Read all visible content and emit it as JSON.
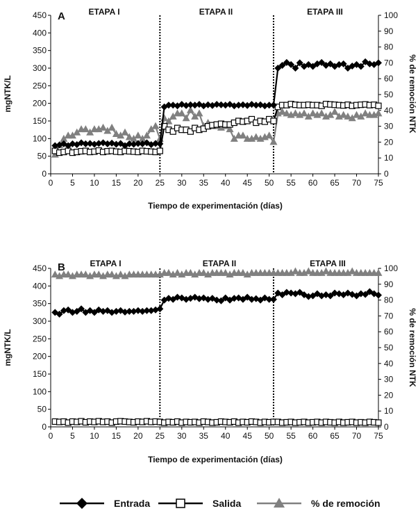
{
  "legend": {
    "entrada": "Entrada",
    "salida": "Salida",
    "remocion": "% de remoción"
  },
  "chart_data": [
    {
      "type": "line",
      "panel_label": "A",
      "stages": [
        "ETAPA I",
        "ETAPA II",
        "ETAPA III"
      ],
      "stage_boundaries": [
        25,
        51
      ],
      "xlabel": "Tiempo de experimentación (días)",
      "ylabel": "mgNTK/L",
      "y2label": "% de remoción NTK",
      "xlim": [
        0,
        75
      ],
      "ylim": [
        0,
        450
      ],
      "y2lim": [
        0,
        100
      ],
      "xticks": [
        "0",
        "5",
        "10",
        "15",
        "20",
        "25",
        "30",
        "35",
        "40",
        "45",
        "50",
        "55",
        "60",
        "65",
        "70",
        "75"
      ],
      "yticks": [
        "0",
        "50",
        "100",
        "150",
        "200",
        "250",
        "300",
        "350",
        "400",
        "450"
      ],
      "y2ticks": [
        "0",
        "10",
        "20",
        "30",
        "40",
        "50",
        "60",
        "70",
        "80",
        "90",
        "100"
      ],
      "series": [
        {
          "name": "Entrada",
          "axis": "left",
          "color": "#000000",
          "marker": "diamond",
          "x": [
            1,
            2,
            3,
            4,
            5,
            6,
            7,
            8,
            9,
            10,
            11,
            12,
            13,
            14,
            15,
            16,
            17,
            18,
            19,
            20,
            21,
            22,
            23,
            24,
            25,
            26,
            27,
            28,
            29,
            30,
            31,
            32,
            33,
            34,
            35,
            36,
            37,
            38,
            39,
            40,
            41,
            42,
            43,
            44,
            45,
            46,
            47,
            48,
            49,
            50,
            51,
            52,
            53,
            54,
            55,
            56,
            57,
            58,
            59,
            60,
            61,
            62,
            63,
            64,
            65,
            66,
            67,
            68,
            69,
            70,
            71,
            72,
            73,
            74,
            75
          ],
          "y": [
            80,
            82,
            85,
            80,
            85,
            83,
            88,
            85,
            86,
            84,
            86,
            88,
            85,
            87,
            84,
            86,
            80,
            85,
            84,
            86,
            85,
            88,
            83,
            86,
            85,
            190,
            195,
            195,
            193,
            197,
            194,
            196,
            195,
            197,
            193,
            196,
            194,
            197,
            196,
            195,
            197,
            193,
            195,
            196,
            194,
            197,
            195,
            196,
            193,
            195,
            195,
            300,
            308,
            316,
            310,
            300,
            315,
            305,
            310,
            305,
            312,
            316,
            308,
            312,
            305,
            310,
            312,
            300,
            306,
            310,
            305,
            318,
            312,
            310,
            315
          ]
        },
        {
          "name": "Salida",
          "axis": "left",
          "color": "#000000",
          "marker": "square-open",
          "x": [
            1,
            2,
            3,
            4,
            5,
            6,
            7,
            8,
            9,
            10,
            11,
            12,
            13,
            14,
            15,
            16,
            17,
            18,
            19,
            20,
            21,
            22,
            23,
            24,
            25,
            26,
            27,
            28,
            29,
            30,
            31,
            32,
            33,
            34,
            35,
            36,
            37,
            38,
            39,
            40,
            41,
            42,
            43,
            44,
            45,
            46,
            47,
            48,
            49,
            50,
            51,
            52,
            53,
            54,
            55,
            56,
            57,
            58,
            59,
            60,
            61,
            62,
            63,
            64,
            65,
            66,
            67,
            68,
            69,
            70,
            71,
            72,
            73,
            74,
            75
          ],
          "y": [
            65,
            60,
            62,
            65,
            60,
            62,
            64,
            65,
            62,
            63,
            66,
            62,
            64,
            65,
            63,
            62,
            65,
            64,
            63,
            62,
            65,
            64,
            63,
            62,
            65,
            135,
            125,
            120,
            130,
            125,
            125,
            120,
            130,
            125,
            128,
            135,
            138,
            140,
            142,
            140,
            140,
            145,
            150,
            148,
            150,
            155,
            145,
            150,
            148,
            155,
            150,
            190,
            195,
            195,
            198,
            196,
            195,
            195,
            196,
            195,
            195,
            193,
            198,
            197,
            196,
            195,
            194,
            196,
            193,
            195,
            196,
            197,
            195,
            196,
            193
          ]
        },
        {
          "name": "% de remoción",
          "axis": "right",
          "color": "#808080",
          "marker": "triangle",
          "x": [
            1,
            2,
            3,
            4,
            5,
            6,
            7,
            8,
            9,
            10,
            11,
            12,
            13,
            14,
            15,
            16,
            17,
            18,
            19,
            20,
            21,
            22,
            23,
            24,
            25,
            26,
            27,
            28,
            29,
            30,
            31,
            32,
            33,
            34,
            35,
            36,
            37,
            38,
            39,
            40,
            41,
            42,
            43,
            44,
            45,
            46,
            47,
            48,
            49,
            50,
            51,
            52,
            53,
            54,
            55,
            56,
            57,
            58,
            59,
            60,
            61,
            62,
            63,
            64,
            65,
            66,
            67,
            68,
            69,
            70,
            71,
            72,
            73,
            74,
            75
          ],
          "y": [
            12,
            18,
            22,
            24,
            24,
            26,
            28,
            28,
            26,
            28,
            28,
            29,
            27,
            29,
            25,
            24,
            26,
            23,
            22,
            24,
            22,
            24,
            28,
            30,
            22,
            35,
            33,
            36,
            38,
            38,
            35,
            40,
            36,
            38,
            30,
            32,
            30,
            30,
            29,
            30,
            28,
            22,
            24,
            24,
            22,
            22,
            23,
            22,
            23,
            24,
            20,
            38,
            39,
            38,
            37,
            38,
            37,
            38,
            36,
            38,
            37,
            38,
            36,
            37,
            39,
            36,
            37,
            36,
            35,
            37,
            36,
            38,
            37,
            37,
            38
          ]
        }
      ]
    },
    {
      "type": "line",
      "panel_label": "B",
      "stages": [
        "ETAPA I",
        "ETAPA II",
        "ETAPA III"
      ],
      "stage_boundaries": [
        25,
        51
      ],
      "xlabel": "Tiempo de experimentación (días)",
      "ylabel": "mgNTK/L",
      "y2label": "% de remoción NTK",
      "xlim": [
        0,
        75
      ],
      "ylim": [
        0,
        450
      ],
      "y2lim": [
        0,
        100
      ],
      "xticks": [
        "0",
        "5",
        "10",
        "15",
        "20",
        "25",
        "30",
        "35",
        "40",
        "45",
        "50",
        "55",
        "60",
        "65",
        "70",
        "75"
      ],
      "yticks": [
        "0",
        "50",
        "100",
        "150",
        "200",
        "250",
        "300",
        "350",
        "400",
        "450"
      ],
      "y2ticks": [
        "0",
        "10",
        "20",
        "30",
        "40",
        "50",
        "60",
        "70",
        "80",
        "90",
        "100"
      ],
      "series": [
        {
          "name": "Entrada",
          "axis": "left",
          "color": "#000000",
          "marker": "diamond",
          "x": [
            1,
            2,
            3,
            4,
            5,
            6,
            7,
            8,
            9,
            10,
            11,
            12,
            13,
            14,
            15,
            16,
            17,
            18,
            19,
            20,
            21,
            22,
            23,
            24,
            25,
            26,
            27,
            28,
            29,
            30,
            31,
            32,
            33,
            34,
            35,
            36,
            37,
            38,
            39,
            40,
            41,
            42,
            43,
            44,
            45,
            46,
            47,
            48,
            49,
            50,
            51,
            52,
            53,
            54,
            55,
            56,
            57,
            58,
            59,
            60,
            61,
            62,
            63,
            64,
            65,
            66,
            67,
            68,
            69,
            70,
            71,
            72,
            73,
            74,
            75
          ],
          "y": [
            325,
            320,
            330,
            332,
            325,
            328,
            335,
            325,
            330,
            325,
            332,
            328,
            330,
            325,
            328,
            330,
            326,
            328,
            328,
            330,
            328,
            330,
            330,
            332,
            335,
            360,
            365,
            362,
            368,
            366,
            362,
            365,
            368,
            364,
            366,
            362,
            365,
            360,
            358,
            366,
            360,
            365,
            366,
            362,
            368,
            362,
            364,
            360,
            366,
            362,
            362,
            380,
            375,
            382,
            380,
            378,
            382,
            375,
            370,
            372,
            378,
            372,
            375,
            372,
            380,
            378,
            375,
            380,
            376,
            372,
            378,
            376,
            384,
            378,
            374
          ]
        },
        {
          "name": "Salida",
          "axis": "left",
          "color": "#000000",
          "marker": "square-open",
          "x": [
            1,
            2,
            3,
            4,
            5,
            6,
            7,
            8,
            9,
            10,
            11,
            12,
            13,
            14,
            15,
            16,
            17,
            18,
            19,
            20,
            21,
            22,
            23,
            24,
            25,
            26,
            27,
            28,
            29,
            30,
            31,
            32,
            33,
            34,
            35,
            36,
            37,
            38,
            39,
            40,
            41,
            42,
            43,
            44,
            45,
            46,
            47,
            48,
            49,
            50,
            51,
            52,
            53,
            54,
            55,
            56,
            57,
            58,
            59,
            60,
            61,
            62,
            63,
            64,
            65,
            66,
            67,
            68,
            69,
            70,
            71,
            72,
            73,
            74,
            75
          ],
          "y": [
            15,
            14,
            15,
            12,
            15,
            14,
            16,
            13,
            15,
            14,
            16,
            14,
            15,
            12,
            15,
            16,
            15,
            14,
            13,
            15,
            14,
            16,
            14,
            15,
            14,
            12,
            14,
            13,
            15,
            12,
            14,
            13,
            14,
            12,
            15,
            14,
            12,
            13,
            15,
            14,
            13,
            15,
            12,
            14,
            13,
            15,
            14,
            12,
            14,
            13,
            14,
            14,
            12,
            13,
            14,
            12,
            13,
            14,
            12,
            13,
            14,
            12,
            14,
            13,
            12,
            14,
            12,
            13,
            14,
            12,
            13,
            12,
            14,
            13,
            12
          ]
        },
        {
          "name": "% de remoción",
          "axis": "right",
          "color": "#808080",
          "marker": "triangle",
          "x": [
            1,
            2,
            3,
            4,
            5,
            6,
            7,
            8,
            9,
            10,
            11,
            12,
            13,
            14,
            15,
            16,
            17,
            18,
            19,
            20,
            21,
            22,
            23,
            24,
            25,
            26,
            27,
            28,
            29,
            30,
            31,
            32,
            33,
            34,
            35,
            36,
            37,
            38,
            39,
            40,
            41,
            42,
            43,
            44,
            45,
            46,
            47,
            48,
            49,
            50,
            51,
            52,
            53,
            54,
            55,
            56,
            57,
            58,
            59,
            60,
            61,
            62,
            63,
            64,
            65,
            66,
            67,
            68,
            69,
            70,
            71,
            72,
            73,
            74,
            75
          ],
          "y": [
            96,
            95,
            96,
            96,
            95,
            96,
            96,
            96,
            95,
            96,
            96,
            95,
            96,
            96,
            95,
            96,
            95,
            96,
            96,
            96,
            96,
            96,
            96,
            96,
            96,
            97,
            97,
            96,
            97,
            96,
            97,
            97,
            96,
            97,
            97,
            96,
            97,
            97,
            97,
            97,
            96,
            97,
            97,
            97,
            96,
            97,
            97,
            97,
            97,
            97,
            97,
            97,
            97,
            97,
            97,
            98,
            97,
            97,
            98,
            97,
            97,
            97,
            98,
            97,
            97,
            97,
            97,
            97,
            98,
            97,
            97,
            97,
            97,
            97,
            97
          ]
        }
      ]
    }
  ]
}
